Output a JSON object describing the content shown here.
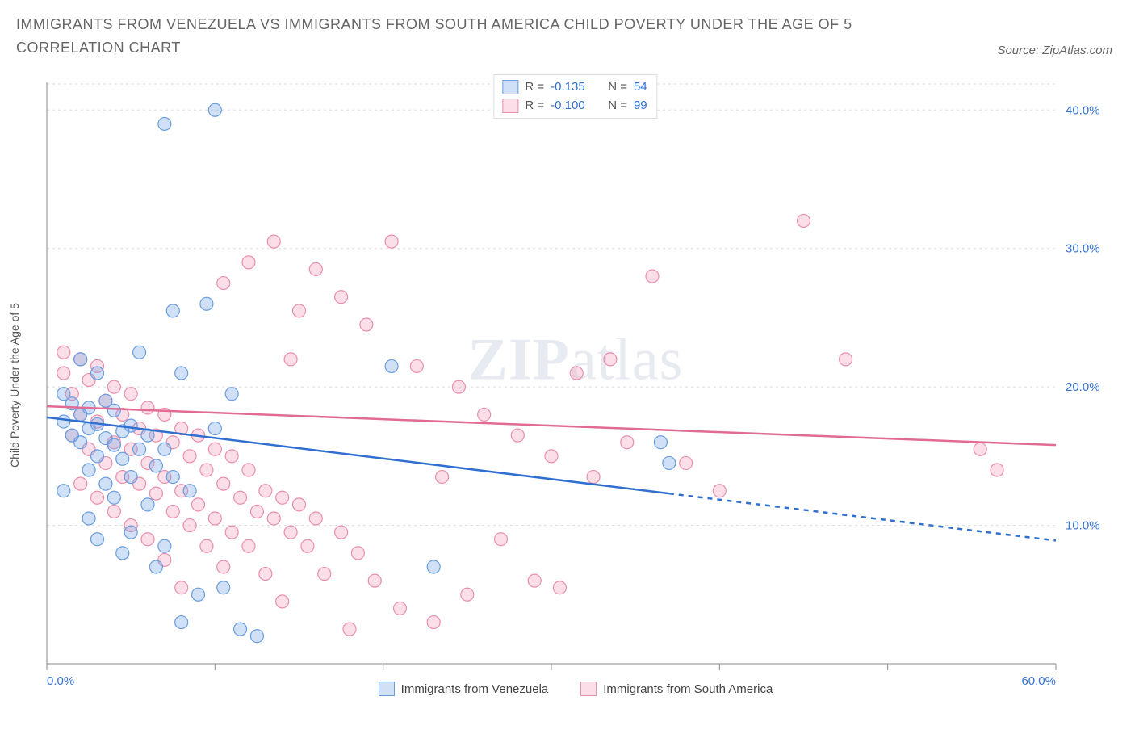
{
  "title": "IMMIGRANTS FROM VENEZUELA VS IMMIGRANTS FROM SOUTH AMERICA CHILD POVERTY UNDER THE AGE OF 5 CORRELATION CHART",
  "source": "Source: ZipAtlas.com",
  "watermark_bold": "ZIP",
  "watermark_rest": "atlas",
  "y_axis_label": "Child Poverty Under the Age of 5",
  "chart": {
    "type": "scatter",
    "background_color": "#ffffff",
    "grid_color": "#dcdcdc",
    "grid_dash": "3,4",
    "axis_line_color": "#888888",
    "x": {
      "min": 0.0,
      "max": 60.0,
      "ticks": [
        0.0,
        10.0,
        20.0,
        30.0,
        40.0,
        50.0,
        60.0
      ],
      "tick_labels": [
        "0.0%",
        "",
        "",
        "",
        "",
        "",
        "60.0%"
      ],
      "label_color": "#3773d4",
      "label_fontsize": 15
    },
    "y": {
      "min": 0.0,
      "max": 42.0,
      "ticks": [
        10.0,
        20.0,
        30.0,
        40.0
      ],
      "tick_labels": [
        "10.0%",
        "20.0%",
        "30.0%",
        "40.0%"
      ],
      "label_color": "#3773d4",
      "label_fontsize": 15
    },
    "series": [
      {
        "key": "venezuela",
        "label": "Immigrants from Venezuela",
        "marker_fill": "rgba(120,165,228,0.35)",
        "marker_stroke": "#6a9de0",
        "marker_radius": 8,
        "trend_color": "#2f6fd0",
        "trend_width": 2.5,
        "trend_start": [
          0.0,
          17.8
        ],
        "trend_solid_end": [
          37.0,
          12.3
        ],
        "trend_dash_end": [
          60.0,
          8.9
        ],
        "R": "-0.135",
        "N": "54",
        "points": [
          [
            2.0,
            22.0
          ],
          [
            3.0,
            21.0
          ],
          [
            1.0,
            19.5
          ],
          [
            3.5,
            19.0
          ],
          [
            1.5,
            18.8
          ],
          [
            2.5,
            18.5
          ],
          [
            4.0,
            18.3
          ],
          [
            2.0,
            18.0
          ],
          [
            1.0,
            17.5
          ],
          [
            3.0,
            17.3
          ],
          [
            5.0,
            17.2
          ],
          [
            2.5,
            17.0
          ],
          [
            4.5,
            16.8
          ],
          [
            1.5,
            16.5
          ],
          [
            3.5,
            16.3
          ],
          [
            6.0,
            16.5
          ],
          [
            2.0,
            16.0
          ],
          [
            4.0,
            15.8
          ],
          [
            5.5,
            15.5
          ],
          [
            3.0,
            15.0
          ],
          [
            7.0,
            15.5
          ],
          [
            4.5,
            14.8
          ],
          [
            6.5,
            14.3
          ],
          [
            2.5,
            14.0
          ],
          [
            5.0,
            13.5
          ],
          [
            3.5,
            13.0
          ],
          [
            7.5,
            13.5
          ],
          [
            1.0,
            12.5
          ],
          [
            4.0,
            12.0
          ],
          [
            8.5,
            12.5
          ],
          [
            6.0,
            11.5
          ],
          [
            2.5,
            10.5
          ],
          [
            5.0,
            9.5
          ],
          [
            3.0,
            9.0
          ],
          [
            4.5,
            8.0
          ],
          [
            7.0,
            8.5
          ],
          [
            6.5,
            7.0
          ],
          [
            9.0,
            5.0
          ],
          [
            10.5,
            5.5
          ],
          [
            8.0,
            3.0
          ],
          [
            11.5,
            2.5
          ],
          [
            12.5,
            2.0
          ],
          [
            9.5,
            26.0
          ],
          [
            7.5,
            25.5
          ],
          [
            7.0,
            39.0
          ],
          [
            10.0,
            40.0
          ],
          [
            5.5,
            22.5
          ],
          [
            8.0,
            21.0
          ],
          [
            11.0,
            19.5
          ],
          [
            10.0,
            17.0
          ],
          [
            20.5,
            21.5
          ],
          [
            23.0,
            7.0
          ],
          [
            36.5,
            16.0
          ],
          [
            37.0,
            14.5
          ]
        ]
      },
      {
        "key": "south_america",
        "label": "Immigrants from South America",
        "marker_fill": "rgba(244,160,185,0.35)",
        "marker_stroke": "#e98fae",
        "marker_radius": 8,
        "trend_color": "#e26b94",
        "trend_width": 2.5,
        "trend_start": [
          0.0,
          18.6
        ],
        "trend_solid_end": [
          60.0,
          15.8
        ],
        "trend_dash_end": null,
        "R": "-0.100",
        "N": "99",
        "points": [
          [
            1.0,
            22.5
          ],
          [
            2.0,
            22.0
          ],
          [
            1.0,
            21.0
          ],
          [
            3.0,
            21.5
          ],
          [
            2.5,
            20.5
          ],
          [
            4.0,
            20.0
          ],
          [
            1.5,
            19.5
          ],
          [
            5.0,
            19.5
          ],
          [
            3.5,
            19.0
          ],
          [
            6.0,
            18.5
          ],
          [
            2.0,
            18.0
          ],
          [
            4.5,
            18.0
          ],
          [
            7.0,
            18.0
          ],
          [
            3.0,
            17.5
          ],
          [
            5.5,
            17.0
          ],
          [
            8.0,
            17.0
          ],
          [
            1.5,
            16.5
          ],
          [
            6.5,
            16.5
          ],
          [
            9.0,
            16.5
          ],
          [
            4.0,
            16.0
          ],
          [
            7.5,
            16.0
          ],
          [
            2.5,
            15.5
          ],
          [
            5.0,
            15.5
          ],
          [
            10.0,
            15.5
          ],
          [
            8.5,
            15.0
          ],
          [
            3.5,
            14.5
          ],
          [
            6.0,
            14.5
          ],
          [
            11.0,
            15.0
          ],
          [
            9.5,
            14.0
          ],
          [
            4.5,
            13.5
          ],
          [
            7.0,
            13.5
          ],
          [
            12.0,
            14.0
          ],
          [
            2.0,
            13.0
          ],
          [
            5.5,
            13.0
          ],
          [
            10.5,
            13.0
          ],
          [
            8.0,
            12.5
          ],
          [
            3.0,
            12.0
          ],
          [
            6.5,
            12.3
          ],
          [
            13.0,
            12.5
          ],
          [
            11.5,
            12.0
          ],
          [
            9.0,
            11.5
          ],
          [
            4.0,
            11.0
          ],
          [
            7.5,
            11.0
          ],
          [
            14.0,
            12.0
          ],
          [
            12.5,
            11.0
          ],
          [
            10.0,
            10.5
          ],
          [
            5.0,
            10.0
          ],
          [
            8.5,
            10.0
          ],
          [
            15.0,
            11.5
          ],
          [
            13.5,
            10.5
          ],
          [
            11.0,
            9.5
          ],
          [
            6.0,
            9.0
          ],
          [
            9.5,
            8.5
          ],
          [
            16.0,
            10.5
          ],
          [
            14.5,
            9.5
          ],
          [
            12.0,
            8.5
          ],
          [
            7.0,
            7.5
          ],
          [
            10.5,
            7.0
          ],
          [
            17.5,
            9.5
          ],
          [
            15.5,
            8.5
          ],
          [
            13.0,
            6.5
          ],
          [
            8.0,
            5.5
          ],
          [
            18.5,
            8.0
          ],
          [
            16.5,
            6.5
          ],
          [
            14.0,
            4.5
          ],
          [
            19.5,
            6.0
          ],
          [
            21.0,
            4.0
          ],
          [
            23.0,
            3.0
          ],
          [
            18.0,
            2.5
          ],
          [
            10.5,
            27.5
          ],
          [
            12.0,
            29.0
          ],
          [
            16.0,
            28.5
          ],
          [
            13.5,
            30.5
          ],
          [
            20.5,
            30.5
          ],
          [
            15.0,
            25.5
          ],
          [
            17.5,
            26.5
          ],
          [
            19.0,
            24.5
          ],
          [
            22.0,
            21.5
          ],
          [
            14.5,
            22.0
          ],
          [
            24.5,
            20.0
          ],
          [
            26.0,
            18.0
          ],
          [
            28.0,
            16.5
          ],
          [
            30.0,
            15.0
          ],
          [
            31.5,
            21.0
          ],
          [
            32.5,
            13.5
          ],
          [
            33.5,
            22.0
          ],
          [
            34.5,
            16.0
          ],
          [
            27.0,
            9.0
          ],
          [
            29.0,
            6.0
          ],
          [
            30.5,
            5.5
          ],
          [
            45.0,
            32.0
          ],
          [
            47.5,
            22.0
          ],
          [
            55.5,
            15.5
          ],
          [
            56.5,
            14.0
          ],
          [
            36.0,
            28.0
          ],
          [
            38.0,
            14.5
          ],
          [
            40.0,
            12.5
          ],
          [
            25.0,
            5.0
          ],
          [
            23.5,
            13.5
          ]
        ]
      }
    ],
    "legend_box": {
      "border_color": "#dddddd",
      "r_label": "R =",
      "n_label": "N ="
    },
    "bottom_legend": true
  }
}
